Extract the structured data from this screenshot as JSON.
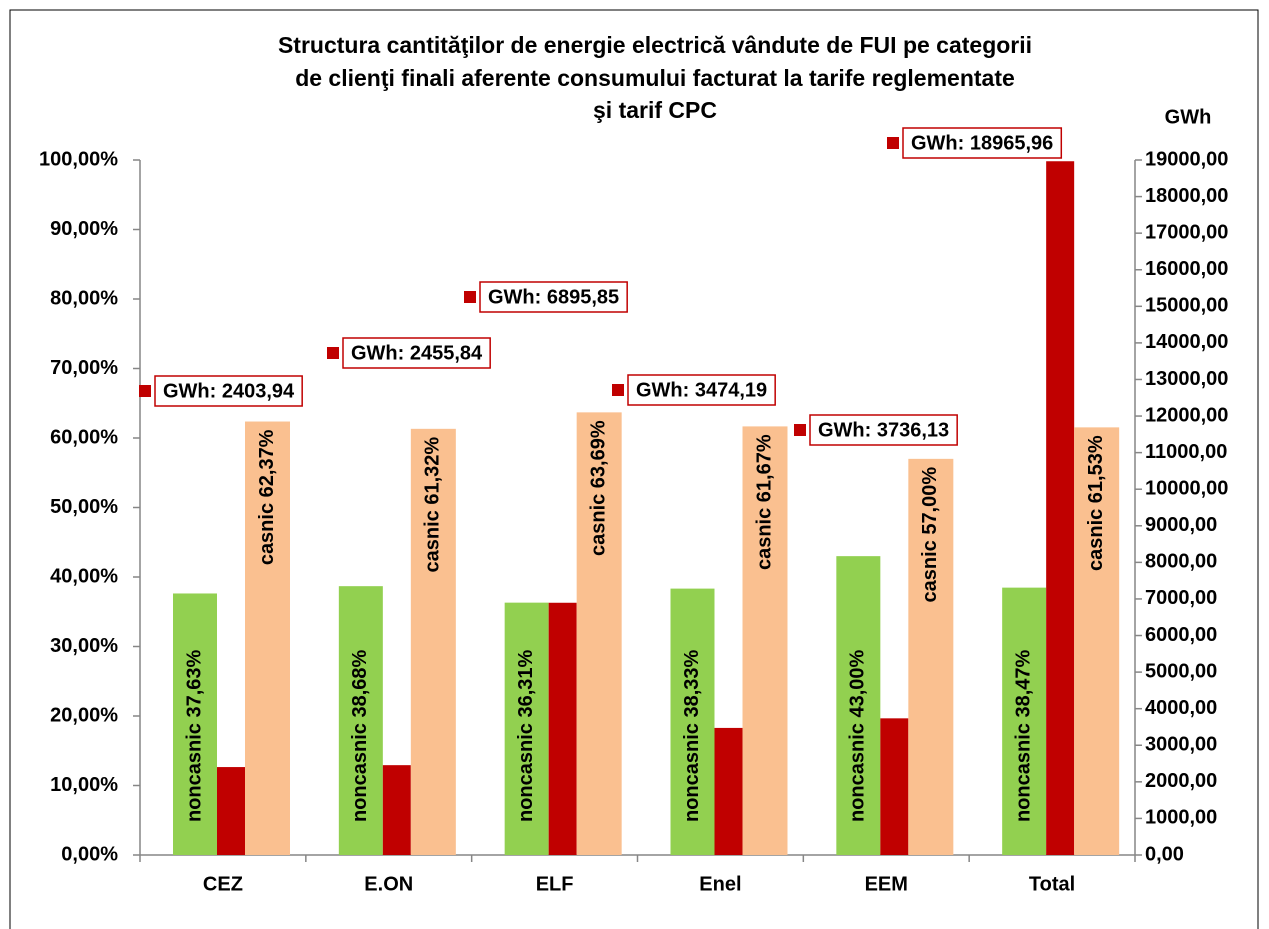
{
  "chart_data": {
    "type": "bar",
    "title": [
      "Structura cantităţilor de energie electrică vândute  de FUI  pe categorii",
      "de clienţi  finali aferente  consumului facturat la tarife reglementate",
      "şi tarif CPC"
    ],
    "y2_label": "GWh",
    "categories": [
      "CEZ",
      "E.ON",
      "ELF",
      "Enel",
      "EEM",
      "Total"
    ],
    "series": [
      {
        "name": "noncasnic",
        "color": "#92d050",
        "values": [
          37.63,
          38.68,
          36.31,
          38.33,
          43.0,
          38.47
        ],
        "value_labels": [
          "noncasnic 37,63%",
          "noncasnic 38,68%",
          "noncasnic 36,31%",
          "noncasnic 38,33%",
          "noncasnic 43,00%",
          "noncasnic 38,47%"
        ]
      },
      {
        "name": "GWh",
        "color": "#c00000",
        "axis": "y2",
        "values": [
          2403.94,
          2455.84,
          6895.85,
          3474.19,
          3736.13,
          18965.96
        ],
        "value_labels": [
          "GWh:  2403,94",
          "GWh:  2455,84",
          "GWh:  6895,85",
          "GWh:  3474,19",
          "GWh:  3736,13",
          "GWh:  18965,96"
        ]
      },
      {
        "name": "casnic",
        "color": "#fac090",
        "values": [
          62.37,
          61.32,
          63.69,
          61.67,
          57.0,
          61.53
        ],
        "value_labels": [
          "casnic 62,37%",
          "casnic 61,32%",
          "casnic 63,69%",
          "casnic 61,67%",
          "casnic 57,00%",
          "casnic 61,53%"
        ]
      }
    ],
    "ylim": [
      0,
      100
    ],
    "yticks": [
      {
        "value": 0,
        "label": "0,00%"
      },
      {
        "value": 10,
        "label": "10,00%"
      },
      {
        "value": 20,
        "label": "20,00%"
      },
      {
        "value": 30,
        "label": "30,00%"
      },
      {
        "value": 40,
        "label": "40,00%"
      },
      {
        "value": 50,
        "label": "50,00%"
      },
      {
        "value": 60,
        "label": "60,00%"
      },
      {
        "value": 70,
        "label": "70,00%"
      },
      {
        "value": 80,
        "label": "80,00%"
      },
      {
        "value": 90,
        "label": "90,00%"
      },
      {
        "value": 100,
        "label": "100,00%"
      }
    ],
    "y2lim": [
      0,
      19000
    ],
    "y2ticks": [
      {
        "value": 0,
        "label": "0,00"
      },
      {
        "value": 1000,
        "label": "1000,00"
      },
      {
        "value": 2000,
        "label": "2000,00"
      },
      {
        "value": 3000,
        "label": "3000,00"
      },
      {
        "value": 4000,
        "label": "4000,00"
      },
      {
        "value": 5000,
        "label": "5000,00"
      },
      {
        "value": 6000,
        "label": "6000,00"
      },
      {
        "value": 7000,
        "label": "7000,00"
      },
      {
        "value": 8000,
        "label": "8000,00"
      },
      {
        "value": 9000,
        "label": "9000,00"
      },
      {
        "value": 10000,
        "label": "10000,00"
      },
      {
        "value": 11000,
        "label": "11000,00"
      },
      {
        "value": 12000,
        "label": "12000,00"
      },
      {
        "value": 13000,
        "label": "13000,00"
      },
      {
        "value": 14000,
        "label": "14000,00"
      },
      {
        "value": 15000,
        "label": "15000,00"
      },
      {
        "value": 16000,
        "label": "16000,00"
      },
      {
        "value": 17000,
        "label": "17000,00"
      },
      {
        "value": 18000,
        "label": "18000,00"
      },
      {
        "value": 19000,
        "label": "19000,00"
      }
    ],
    "grid": false
  }
}
